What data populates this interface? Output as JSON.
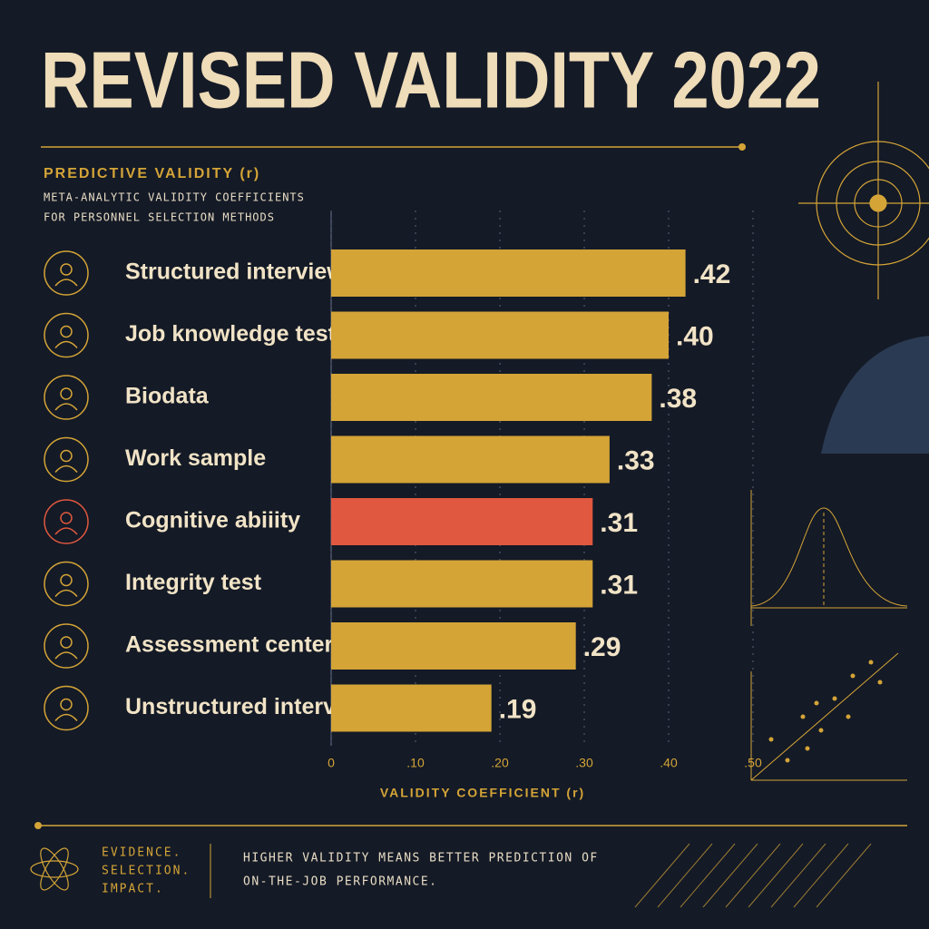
{
  "chart_data": {
    "type": "bar",
    "orientation": "horizontal",
    "title": "REVISED VALIDITY 2022",
    "subtitle": "PREDICTIVE VALIDITY (r)",
    "description": [
      "META-ANALYTIC VALIDITY COEFFICIENTS",
      "FOR PERSONNEL SELECTION METHODS"
    ],
    "categories": [
      "Structured interview",
      "Job knowledge test",
      "Biodata",
      "Work sample",
      "Cognitive abiiity",
      "Integrity test",
      "Assessment center",
      "Unstructured interview"
    ],
    "values": [
      0.42,
      0.4,
      0.38,
      0.33,
      0.31,
      0.31,
      0.29,
      0.19
    ],
    "value_labels": [
      ".42",
      ".40",
      ".38",
      ".33",
      ".31",
      ".31",
      ".29",
      ".19"
    ],
    "colors": [
      "#d4a437",
      "#d4a437",
      "#d4a437",
      "#d4a437",
      "#e0583f",
      "#d4a437",
      "#d4a437",
      "#d4a437"
    ],
    "xlim": [
      0,
      0.5
    ],
    "xticks": [
      0,
      {
        "value": 0.1,
        "label": ".10"
      },
      {
        "value": 0.2,
        "label": ".20"
      },
      {
        "value": 0.3,
        "label": ".30"
      },
      {
        "value": 0.4,
        "label": ".40"
      },
      {
        "value": 0.5,
        "label": ".50"
      }
    ],
    "xlabel": "VALIDITY COEFFICIENT (r)",
    "grid": true,
    "footer": {
      "motto": [
        "EVIDENCE.",
        "SELECTION.",
        "IMPACT."
      ],
      "note": [
        "HIGHER VALIDITY MEANS BETTER PREDICTION OF",
        "ON-THE-JOB PERFORMANCE."
      ]
    }
  }
}
